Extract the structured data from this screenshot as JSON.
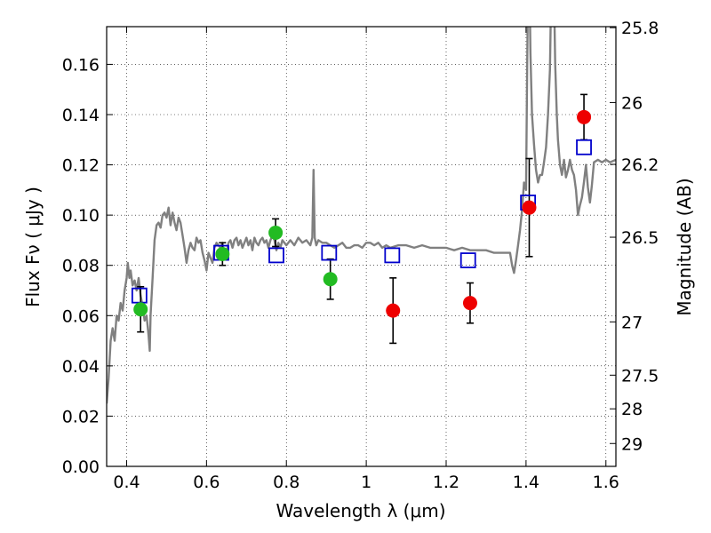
{
  "chart_data": {
    "type": "scatter",
    "xlabel": "Wavelength  λ (μm)",
    "ylabel": "Flux  Fν  ( μJy )",
    "y2label": "Magnitude (AB)",
    "xlim": [
      0.35,
      1.625
    ],
    "ylim": [
      0.0,
      0.175
    ],
    "grid": true,
    "x_ticks": [
      0.4,
      0.6,
      0.8,
      1.0,
      1.2,
      1.4,
      1.6
    ],
    "x_tick_labels": [
      "0.4",
      "0.6",
      "0.8",
      "1",
      "1.2",
      "1.4",
      "1.6"
    ],
    "y_ticks": [
      0.0,
      0.02,
      0.04,
      0.06,
      0.08,
      0.1,
      0.12,
      0.14,
      0.16
    ],
    "y_tick_labels": [
      "0.00",
      "0.02",
      "0.04",
      "0.06",
      "0.08",
      "0.10",
      "0.12",
      "0.14",
      "0.16"
    ],
    "y2_ticks": [
      {
        "flux": 0.1746,
        "label": "25.8"
      },
      {
        "flux": 0.1448,
        "label": "26"
      },
      {
        "flux": 0.1202,
        "label": "26.2"
      },
      {
        "flux": 0.0912,
        "label": "26.5"
      },
      {
        "flux": 0.0575,
        "label": "27"
      },
      {
        "flux": 0.0363,
        "label": "27.5"
      },
      {
        "flux": 0.0229,
        "label": "28"
      },
      {
        "flux": 0.0091,
        "label": "29"
      }
    ],
    "series": [
      {
        "kind": "line",
        "color": "#808080",
        "points": [
          [
            0.35,
            0.025
          ],
          [
            0.355,
            0.035
          ],
          [
            0.36,
            0.05
          ],
          [
            0.365,
            0.055
          ],
          [
            0.37,
            0.05
          ],
          [
            0.375,
            0.06
          ],
          [
            0.38,
            0.058
          ],
          [
            0.385,
            0.065
          ],
          [
            0.39,
            0.062
          ],
          [
            0.395,
            0.07
          ],
          [
            0.4,
            0.075
          ],
          [
            0.403,
            0.081
          ],
          [
            0.407,
            0.075
          ],
          [
            0.41,
            0.078
          ],
          [
            0.415,
            0.072
          ],
          [
            0.42,
            0.074
          ],
          [
            0.425,
            0.07
          ],
          [
            0.43,
            0.075
          ],
          [
            0.435,
            0.068
          ],
          [
            0.44,
            0.064
          ],
          [
            0.445,
            0.058
          ],
          [
            0.45,
            0.06
          ],
          [
            0.455,
            0.052
          ],
          [
            0.458,
            0.046
          ],
          [
            0.46,
            0.06
          ],
          [
            0.465,
            0.075
          ],
          [
            0.47,
            0.09
          ],
          [
            0.475,
            0.096
          ],
          [
            0.48,
            0.097
          ],
          [
            0.485,
            0.095
          ],
          [
            0.49,
            0.1
          ],
          [
            0.495,
            0.101
          ],
          [
            0.5,
            0.099
          ],
          [
            0.505,
            0.103
          ],
          [
            0.51,
            0.096
          ],
          [
            0.515,
            0.101
          ],
          [
            0.52,
            0.097
          ],
          [
            0.525,
            0.094
          ],
          [
            0.53,
            0.099
          ],
          [
            0.535,
            0.097
          ],
          [
            0.54,
            0.092
          ],
          [
            0.545,
            0.087
          ],
          [
            0.55,
            0.081
          ],
          [
            0.555,
            0.086
          ],
          [
            0.56,
            0.089
          ],
          [
            0.565,
            0.087
          ],
          [
            0.57,
            0.086
          ],
          [
            0.575,
            0.091
          ],
          [
            0.58,
            0.089
          ],
          [
            0.585,
            0.09
          ],
          [
            0.59,
            0.085
          ],
          [
            0.595,
            0.082
          ],
          [
            0.6,
            0.078
          ],
          [
            0.605,
            0.085
          ],
          [
            0.61,
            0.083
          ],
          [
            0.615,
            0.081
          ],
          [
            0.62,
            0.087
          ],
          [
            0.625,
            0.089
          ],
          [
            0.63,
            0.088
          ],
          [
            0.635,
            0.087
          ],
          [
            0.64,
            0.089
          ],
          [
            0.645,
            0.083
          ],
          [
            0.65,
            0.085
          ],
          [
            0.655,
            0.089
          ],
          [
            0.66,
            0.09
          ],
          [
            0.665,
            0.087
          ],
          [
            0.67,
            0.09
          ],
          [
            0.675,
            0.091
          ],
          [
            0.68,
            0.088
          ],
          [
            0.685,
            0.09
          ],
          [
            0.69,
            0.087
          ],
          [
            0.695,
            0.089
          ],
          [
            0.7,
            0.091
          ],
          [
            0.705,
            0.088
          ],
          [
            0.71,
            0.09
          ],
          [
            0.715,
            0.086
          ],
          [
            0.72,
            0.091
          ],
          [
            0.725,
            0.089
          ],
          [
            0.73,
            0.088
          ],
          [
            0.735,
            0.09
          ],
          [
            0.74,
            0.091
          ],
          [
            0.745,
            0.089
          ],
          [
            0.75,
            0.09
          ],
          [
            0.755,
            0.087
          ],
          [
            0.76,
            0.09
          ],
          [
            0.765,
            0.092
          ],
          [
            0.77,
            0.09
          ],
          [
            0.775,
            0.086
          ],
          [
            0.78,
            0.089
          ],
          [
            0.785,
            0.087
          ],
          [
            0.79,
            0.09
          ],
          [
            0.795,
            0.089
          ],
          [
            0.8,
            0.088
          ],
          [
            0.81,
            0.09
          ],
          [
            0.82,
            0.088
          ],
          [
            0.83,
            0.091
          ],
          [
            0.84,
            0.089
          ],
          [
            0.85,
            0.09
          ],
          [
            0.86,
            0.088
          ],
          [
            0.865,
            0.091
          ],
          [
            0.868,
            0.118
          ],
          [
            0.871,
            0.091
          ],
          [
            0.875,
            0.088
          ],
          [
            0.88,
            0.09
          ],
          [
            0.89,
            0.089
          ],
          [
            0.9,
            0.089
          ],
          [
            0.91,
            0.088
          ],
          [
            0.92,
            0.087
          ],
          [
            0.93,
            0.088
          ],
          [
            0.94,
            0.089
          ],
          [
            0.95,
            0.087
          ],
          [
            0.96,
            0.087
          ],
          [
            0.97,
            0.088
          ],
          [
            0.98,
            0.088
          ],
          [
            0.99,
            0.087
          ],
          [
            1.0,
            0.089
          ],
          [
            1.01,
            0.089
          ],
          [
            1.02,
            0.088
          ],
          [
            1.03,
            0.089
          ],
          [
            1.04,
            0.087
          ],
          [
            1.05,
            0.088
          ],
          [
            1.06,
            0.087
          ],
          [
            1.08,
            0.088
          ],
          [
            1.1,
            0.088
          ],
          [
            1.12,
            0.087
          ],
          [
            1.14,
            0.088
          ],
          [
            1.16,
            0.087
          ],
          [
            1.18,
            0.087
          ],
          [
            1.2,
            0.087
          ],
          [
            1.22,
            0.086
          ],
          [
            1.24,
            0.087
          ],
          [
            1.26,
            0.086
          ],
          [
            1.28,
            0.086
          ],
          [
            1.3,
            0.086
          ],
          [
            1.32,
            0.085
          ],
          [
            1.34,
            0.085
          ],
          [
            1.36,
            0.085
          ],
          [
            1.365,
            0.08
          ],
          [
            1.37,
            0.077
          ],
          [
            1.375,
            0.082
          ],
          [
            1.38,
            0.088
          ],
          [
            1.385,
            0.094
          ],
          [
            1.39,
            0.102
          ],
          [
            1.395,
            0.113
          ],
          [
            1.4,
            0.11
          ],
          [
            1.403,
            0.16
          ],
          [
            1.405,
            0.19
          ],
          [
            1.409,
            0.19
          ],
          [
            1.411,
            0.165
          ],
          [
            1.415,
            0.14
          ],
          [
            1.42,
            0.128
          ],
          [
            1.425,
            0.118
          ],
          [
            1.43,
            0.113
          ],
          [
            1.435,
            0.116
          ],
          [
            1.44,
            0.116
          ],
          [
            1.445,
            0.121
          ],
          [
            1.45,
            0.127
          ],
          [
            1.455,
            0.14
          ],
          [
            1.46,
            0.158
          ],
          [
            1.463,
            0.19
          ],
          [
            1.47,
            0.19
          ],
          [
            1.473,
            0.16
          ],
          [
            1.477,
            0.14
          ],
          [
            1.48,
            0.13
          ],
          [
            1.485,
            0.12
          ],
          [
            1.49,
            0.116
          ],
          [
            1.495,
            0.122
          ],
          [
            1.5,
            0.115
          ],
          [
            1.505,
            0.118
          ],
          [
            1.51,
            0.122
          ],
          [
            1.515,
            0.118
          ],
          [
            1.52,
            0.116
          ],
          [
            1.525,
            0.11
          ],
          [
            1.53,
            0.1
          ],
          [
            1.535,
            0.104
          ],
          [
            1.54,
            0.107
          ],
          [
            1.545,
            0.113
          ],
          [
            1.55,
            0.12
          ],
          [
            1.555,
            0.111
          ],
          [
            1.56,
            0.105
          ],
          [
            1.565,
            0.112
          ],
          [
            1.57,
            0.121
          ],
          [
            1.58,
            0.122
          ],
          [
            1.59,
            0.121
          ],
          [
            1.6,
            0.122
          ],
          [
            1.61,
            0.121
          ],
          [
            1.625,
            0.122
          ]
        ]
      },
      {
        "kind": "squares",
        "color": "#0000cc",
        "points": [
          [
            0.432,
            0.068
          ],
          [
            0.637,
            0.085
          ],
          [
            0.775,
            0.084
          ],
          [
            0.907,
            0.085
          ],
          [
            1.065,
            0.084
          ],
          [
            1.255,
            0.082
          ],
          [
            1.405,
            0.105
          ],
          [
            1.545,
            0.127
          ]
        ]
      },
      {
        "kind": "points_errorbars",
        "color": "#22bb22",
        "points": [
          {
            "x": 0.435,
            "y": 0.0625,
            "yerr": 0.009
          },
          {
            "x": 0.64,
            "y": 0.0845,
            "yerr": 0.0045
          },
          {
            "x": 0.773,
            "y": 0.093,
            "yerr": 0.0055
          },
          {
            "x": 0.91,
            "y": 0.0745,
            "yerr": 0.008
          }
        ]
      },
      {
        "kind": "points_errorbars",
        "color": "#ee0000",
        "points": [
          {
            "x": 1.067,
            "y": 0.062,
            "yerr": 0.013
          },
          {
            "x": 1.26,
            "y": 0.065,
            "yerr": 0.008
          },
          {
            "x": 1.408,
            "y": 0.103,
            "yerr": 0.0195
          },
          {
            "x": 1.545,
            "y": 0.139,
            "yerr": 0.009
          }
        ]
      }
    ]
  }
}
